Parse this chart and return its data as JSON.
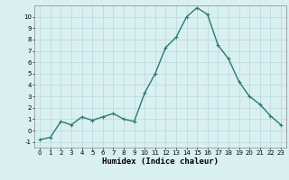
{
  "x": [
    0,
    1,
    2,
    3,
    4,
    5,
    6,
    7,
    8,
    9,
    10,
    11,
    12,
    13,
    14,
    15,
    16,
    17,
    18,
    19,
    20,
    21,
    22,
    23
  ],
  "y": [
    -0.8,
    -0.6,
    0.8,
    0.5,
    1.2,
    0.9,
    1.2,
    1.5,
    1.0,
    0.8,
    3.3,
    5.0,
    7.3,
    8.2,
    10.0,
    10.8,
    10.2,
    7.5,
    6.3,
    4.3,
    3.0,
    2.3,
    1.3,
    0.5
  ],
  "line_color": "#2d7a6e",
  "marker": "+",
  "marker_size": 3,
  "marker_edge_width": 0.8,
  "bg_color": "#d8f0f0",
  "grid_color": "#b8d8d8",
  "xlabel": "Humidex (Indice chaleur)",
  "xlim": [
    -0.5,
    23.5
  ],
  "ylim": [
    -1.5,
    11.0
  ],
  "yticks": [
    -1,
    0,
    1,
    2,
    3,
    4,
    5,
    6,
    7,
    8,
    9,
    10
  ],
  "xticks": [
    0,
    1,
    2,
    3,
    4,
    5,
    6,
    7,
    8,
    9,
    10,
    11,
    12,
    13,
    14,
    15,
    16,
    17,
    18,
    19,
    20,
    21,
    22,
    23
  ],
  "tick_label_fontsize": 5.0,
  "xlabel_fontsize": 6.5,
  "line_width": 1.0,
  "spine_color": "#888888"
}
